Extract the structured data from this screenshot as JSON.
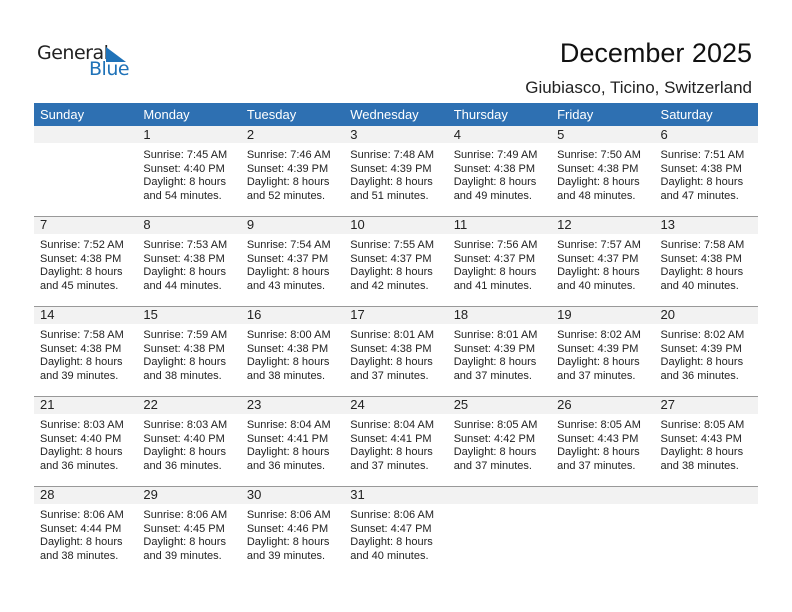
{
  "logo": {
    "general": "General",
    "blue": "Blue",
    "accent": "#1f72b8"
  },
  "header": {
    "title": "December 2025",
    "subtitle": "Giubiasco, Ticino, Switzerland"
  },
  "colors": {
    "header_bg": "#2e70b2",
    "date_bar": "#f2f2f2"
  },
  "days": [
    "Sunday",
    "Monday",
    "Tuesday",
    "Wednesday",
    "Thursday",
    "Friday",
    "Saturday"
  ],
  "weeks": [
    [
      null,
      {
        "day": "1",
        "sunrise": "Sunrise: 7:45 AM",
        "sunset": "Sunset: 4:40 PM",
        "daylight": "Daylight: 8 hours",
        "minutes": "and 54 minutes."
      },
      {
        "day": "2",
        "sunrise": "Sunrise: 7:46 AM",
        "sunset": "Sunset: 4:39 PM",
        "daylight": "Daylight: 8 hours",
        "minutes": "and 52 minutes."
      },
      {
        "day": "3",
        "sunrise": "Sunrise: 7:48 AM",
        "sunset": "Sunset: 4:39 PM",
        "daylight": "Daylight: 8 hours",
        "minutes": "and 51 minutes."
      },
      {
        "day": "4",
        "sunrise": "Sunrise: 7:49 AM",
        "sunset": "Sunset: 4:38 PM",
        "daylight": "Daylight: 8 hours",
        "minutes": "and 49 minutes."
      },
      {
        "day": "5",
        "sunrise": "Sunrise: 7:50 AM",
        "sunset": "Sunset: 4:38 PM",
        "daylight": "Daylight: 8 hours",
        "minutes": "and 48 minutes."
      },
      {
        "day": "6",
        "sunrise": "Sunrise: 7:51 AM",
        "sunset": "Sunset: 4:38 PM",
        "daylight": "Daylight: 8 hours",
        "minutes": "and 47 minutes."
      }
    ],
    [
      {
        "day": "7",
        "sunrise": "Sunrise: 7:52 AM",
        "sunset": "Sunset: 4:38 PM",
        "daylight": "Daylight: 8 hours",
        "minutes": "and 45 minutes."
      },
      {
        "day": "8",
        "sunrise": "Sunrise: 7:53 AM",
        "sunset": "Sunset: 4:38 PM",
        "daylight": "Daylight: 8 hours",
        "minutes": "and 44 minutes."
      },
      {
        "day": "9",
        "sunrise": "Sunrise: 7:54 AM",
        "sunset": "Sunset: 4:37 PM",
        "daylight": "Daylight: 8 hours",
        "minutes": "and 43 minutes."
      },
      {
        "day": "10",
        "sunrise": "Sunrise: 7:55 AM",
        "sunset": "Sunset: 4:37 PM",
        "daylight": "Daylight: 8 hours",
        "minutes": "and 42 minutes."
      },
      {
        "day": "11",
        "sunrise": "Sunrise: 7:56 AM",
        "sunset": "Sunset: 4:37 PM",
        "daylight": "Daylight: 8 hours",
        "minutes": "and 41 minutes."
      },
      {
        "day": "12",
        "sunrise": "Sunrise: 7:57 AM",
        "sunset": "Sunset: 4:37 PM",
        "daylight": "Daylight: 8 hours",
        "minutes": "and 40 minutes."
      },
      {
        "day": "13",
        "sunrise": "Sunrise: 7:58 AM",
        "sunset": "Sunset: 4:38 PM",
        "daylight": "Daylight: 8 hours",
        "minutes": "and 40 minutes."
      }
    ],
    [
      {
        "day": "14",
        "sunrise": "Sunrise: 7:58 AM",
        "sunset": "Sunset: 4:38 PM",
        "daylight": "Daylight: 8 hours",
        "minutes": "and 39 minutes."
      },
      {
        "day": "15",
        "sunrise": "Sunrise: 7:59 AM",
        "sunset": "Sunset: 4:38 PM",
        "daylight": "Daylight: 8 hours",
        "minutes": "and 38 minutes."
      },
      {
        "day": "16",
        "sunrise": "Sunrise: 8:00 AM",
        "sunset": "Sunset: 4:38 PM",
        "daylight": "Daylight: 8 hours",
        "minutes": "and 38 minutes."
      },
      {
        "day": "17",
        "sunrise": "Sunrise: 8:01 AM",
        "sunset": "Sunset: 4:38 PM",
        "daylight": "Daylight: 8 hours",
        "minutes": "and 37 minutes."
      },
      {
        "day": "18",
        "sunrise": "Sunrise: 8:01 AM",
        "sunset": "Sunset: 4:39 PM",
        "daylight": "Daylight: 8 hours",
        "minutes": "and 37 minutes."
      },
      {
        "day": "19",
        "sunrise": "Sunrise: 8:02 AM",
        "sunset": "Sunset: 4:39 PM",
        "daylight": "Daylight: 8 hours",
        "minutes": "and 37 minutes."
      },
      {
        "day": "20",
        "sunrise": "Sunrise: 8:02 AM",
        "sunset": "Sunset: 4:39 PM",
        "daylight": "Daylight: 8 hours",
        "minutes": "and 36 minutes."
      }
    ],
    [
      {
        "day": "21",
        "sunrise": "Sunrise: 8:03 AM",
        "sunset": "Sunset: 4:40 PM",
        "daylight": "Daylight: 8 hours",
        "minutes": "and 36 minutes."
      },
      {
        "day": "22",
        "sunrise": "Sunrise: 8:03 AM",
        "sunset": "Sunset: 4:40 PM",
        "daylight": "Daylight: 8 hours",
        "minutes": "and 36 minutes."
      },
      {
        "day": "23",
        "sunrise": "Sunrise: 8:04 AM",
        "sunset": "Sunset: 4:41 PM",
        "daylight": "Daylight: 8 hours",
        "minutes": "and 36 minutes."
      },
      {
        "day": "24",
        "sunrise": "Sunrise: 8:04 AM",
        "sunset": "Sunset: 4:41 PM",
        "daylight": "Daylight: 8 hours",
        "minutes": "and 37 minutes."
      },
      {
        "day": "25",
        "sunrise": "Sunrise: 8:05 AM",
        "sunset": "Sunset: 4:42 PM",
        "daylight": "Daylight: 8 hours",
        "minutes": "and 37 minutes."
      },
      {
        "day": "26",
        "sunrise": "Sunrise: 8:05 AM",
        "sunset": "Sunset: 4:43 PM",
        "daylight": "Daylight: 8 hours",
        "minutes": "and 37 minutes."
      },
      {
        "day": "27",
        "sunrise": "Sunrise: 8:05 AM",
        "sunset": "Sunset: 4:43 PM",
        "daylight": "Daylight: 8 hours",
        "minutes": "and 38 minutes."
      }
    ],
    [
      {
        "day": "28",
        "sunrise": "Sunrise: 8:06 AM",
        "sunset": "Sunset: 4:44 PM",
        "daylight": "Daylight: 8 hours",
        "minutes": "and 38 minutes."
      },
      {
        "day": "29",
        "sunrise": "Sunrise: 8:06 AM",
        "sunset": "Sunset: 4:45 PM",
        "daylight": "Daylight: 8 hours",
        "minutes": "and 39 minutes."
      },
      {
        "day": "30",
        "sunrise": "Sunrise: 8:06 AM",
        "sunset": "Sunset: 4:46 PM",
        "daylight": "Daylight: 8 hours",
        "minutes": "and 39 minutes."
      },
      {
        "day": "31",
        "sunrise": "Sunrise: 8:06 AM",
        "sunset": "Sunset: 4:47 PM",
        "daylight": "Daylight: 8 hours",
        "minutes": "and 40 minutes."
      },
      null,
      null,
      null
    ]
  ]
}
